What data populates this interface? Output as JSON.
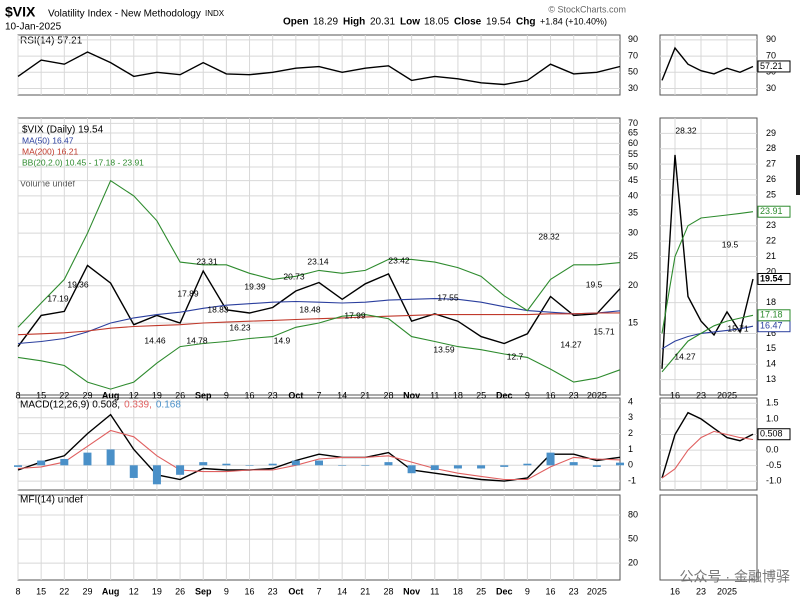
{
  "header": {
    "symbol": "$VIX",
    "name": "Volatility Index - New Methodology",
    "exchange": "INDX",
    "date": "10-Jan-2025",
    "open_label": "Open",
    "open": "18.29",
    "high_label": "High",
    "high": "20.31",
    "low_label": "Low",
    "low": "18.05",
    "close_label": "Close",
    "close": "19.54",
    "chg_label": "Chg",
    "chg": "+1.84 (+10.40%)",
    "source": "© StockCharts.com",
    "watermark": "公众号 · 金融博驿"
  },
  "chart_data": [
    {
      "type": "line",
      "title": "$VIX (Daily) 19.54",
      "log": true,
      "grid": true,
      "categories": [
        "8",
        "15",
        "22",
        "29",
        "Aug",
        "12",
        "19",
        "26",
        "Sep",
        "9",
        "16",
        "23",
        "Oct",
        "7",
        "14",
        "21",
        "28",
        "Nov",
        "11",
        "18",
        "25",
        "Dec",
        "9",
        "16",
        "23",
        "2025",
        null
      ],
      "series": [
        {
          "name": "$VIX (Daily) 19.54",
          "color": "#000000",
          "values": [
            12.5,
            15.9,
            16.4,
            23.4,
            20.4,
            14.8,
            15.9,
            15.0,
            22.4,
            16.6,
            16.2,
            16.9,
            19.2,
            20.5,
            18.0,
            20.3,
            21.9,
            15.2,
            16.1,
            15.2,
            13.5,
            12.8,
            13.8,
            18.4,
            15.9,
            16.1,
            19.54
          ]
        },
        {
          "name": "MA(50) 16.47",
          "color": "#2b3f9e",
          "values": [
            12.8,
            13.0,
            13.3,
            14.0,
            15.0,
            15.6,
            16.0,
            16.3,
            16.8,
            17.2,
            17.4,
            17.6,
            17.7,
            17.6,
            17.5,
            17.6,
            17.9,
            18.0,
            18.1,
            18.0,
            17.6,
            17.0,
            16.5,
            16.3,
            16.1,
            16.2,
            16.47
          ]
        },
        {
          "name": "MA(200) 16.21",
          "color": "#c0392b",
          "values": [
            13.7,
            13.8,
            13.9,
            14.1,
            14.4,
            14.6,
            14.7,
            14.8,
            15.0,
            15.1,
            15.2,
            15.3,
            15.4,
            15.5,
            15.6,
            15.7,
            15.8,
            15.9,
            16.0,
            16.0,
            16.0,
            16.0,
            16.0,
            16.1,
            16.1,
            16.2,
            16.21
          ]
        },
        {
          "name": "BB(20,2.0) 10.45 - 17.18 - 23.91",
          "color": "#2e8b2e",
          "values": [
            14.5,
            17.5,
            21,
            30,
            45,
            40,
            33,
            24,
            23.5,
            23.5,
            22,
            21,
            21.5,
            22.5,
            22,
            22.5,
            24.5,
            24.5,
            24,
            23,
            21.5,
            18.5,
            16.5,
            21,
            23.5,
            23.5,
            23.91
          ]
        },
        {
          "color": "#2e8b2e",
          "values": [
            11.5,
            11.2,
            10.8,
            9.5,
            9.0,
            9.5,
            11,
            12.5,
            12.8,
            13,
            13.3,
            13.5,
            14.5,
            15,
            15.8,
            16,
            15.5,
            13.5,
            13,
            12.5,
            12.2,
            11.8,
            11.5,
            10.5,
            9.5,
            9.8,
            10.45
          ]
        }
      ],
      "volume_label": "Volume undef",
      "annotations": [
        19.36,
        17.19,
        14.46,
        14.78,
        23.31,
        17.89,
        18.83,
        16.23,
        19.39,
        14.9,
        20.73,
        18.48,
        23.14,
        17.99,
        23.42,
        17.55,
        13.59,
        12.7,
        28.32,
        14.27,
        19.5,
        15.71
      ],
      "ylim": [
        8.6,
        73
      ],
      "yticks": [
        15,
        20,
        25,
        30,
        35,
        40,
        45,
        50,
        55,
        60,
        65,
        70
      ]
    },
    {
      "type": "line",
      "title": "RSI(14) 57.21",
      "grid": true,
      "series": [
        {
          "color": "#000000",
          "values": [
            45,
            65,
            60,
            75,
            62,
            45,
            50,
            47,
            62,
            48,
            47,
            50,
            55,
            57,
            50,
            55,
            58,
            40,
            45,
            42,
            37,
            35,
            40,
            60,
            48,
            50,
            57.21
          ]
        }
      ],
      "ylim": [
        22,
        96
      ],
      "yticks": [
        30,
        50,
        70,
        90
      ]
    },
    {
      "type": "line",
      "grid": true,
      "series": [
        {
          "name": "MACD(12,26,9) 0.508,",
          "color": "#000000",
          "values": [
            -0.3,
            0.2,
            0.6,
            2.0,
            3.2,
            1.0,
            -0.6,
            -0.9,
            -0.2,
            -0.3,
            -0.3,
            -0.2,
            0.3,
            0.7,
            0.5,
            0.5,
            0.8,
            -0.3,
            -0.5,
            -0.7,
            -0.9,
            -1.0,
            -0.8,
            0.7,
            0.7,
            0.3,
            0.508
          ]
        },
        {
          "name": "0.339,",
          "color": "#e06060",
          "values": [
            -0.2,
            -0.1,
            0.2,
            1.2,
            2.2,
            1.8,
            0.6,
            -0.3,
            -0.4,
            -0.4,
            -0.3,
            -0.3,
            0.0,
            0.4,
            0.5,
            0.5,
            0.6,
            0.2,
            -0.2,
            -0.5,
            -0.7,
            -0.9,
            -0.9,
            -0.1,
            0.5,
            0.4,
            0.339
          ]
        },
        {
          "name": "0.168",
          "color": "#4a90c8",
          "type": "bar",
          "values": [
            -0.1,
            0.3,
            0.4,
            0.8,
            1.0,
            -0.8,
            -1.2,
            -0.6,
            0.2,
            0.1,
            0,
            0.1,
            0.3,
            0.3,
            0,
            0,
            0.2,
            -0.5,
            -0.3,
            -0.2,
            -0.2,
            -0.1,
            0.1,
            0.8,
            0.2,
            -0.1,
            0.168
          ]
        }
      ],
      "ylim": [
        -1.56,
        4.25
      ],
      "yticks": [
        -1,
        0,
        1,
        2,
        3,
        4
      ]
    },
    {
      "type": "line",
      "title": "MFI(14) undef",
      "grid": true,
      "series": [],
      "ylim": [
        -1,
        105
      ],
      "yticks": [
        20,
        50,
        80
      ]
    },
    {
      "type": "line",
      "grid": true,
      "categories": [
        null,
        "16",
        null,
        "23",
        null,
        "2025",
        null,
        null
      ],
      "series": [
        {
          "color": "#000000",
          "values": [
            13.7,
            27.6,
            18.4,
            16.8,
            15.9,
            17.4,
            16.1,
            19.54
          ]
        },
        {
          "color": "#2b3f9e",
          "values": [
            15.0,
            15.5,
            15.8,
            16.0,
            16.1,
            16.2,
            16.3,
            16.47
          ]
        },
        {
          "color": "#2e8b2e",
          "values": [
            16,
            21,
            23,
            23.5,
            23.6,
            23.7,
            23.8,
            23.91
          ]
        },
        {
          "color": "#2e8b2e",
          "values": [
            13.5,
            14.5,
            15.5,
            16.0,
            16.5,
            16.8,
            17.0,
            17.18
          ]
        }
      ],
      "annotations": [
        28.32,
        19.5,
        15.71,
        14.27
      ],
      "ylim": [
        12,
        30
      ],
      "yticks": [
        13,
        14,
        15,
        16,
        18,
        20,
        21,
        22,
        23,
        25,
        26,
        27,
        28,
        29
      ]
    },
    {
      "type": "line",
      "grid": true,
      "series": [
        {
          "color": "#000000",
          "values": [
            40,
            80,
            60,
            52,
            48,
            55,
            50,
            57.21
          ]
        }
      ],
      "ylim": [
        22,
        96
      ],
      "yticks": [
        30,
        50,
        70,
        90
      ]
    },
    {
      "type": "line",
      "grid": true,
      "series": [
        {
          "color": "#000000",
          "values": [
            -0.9,
            0.5,
            1.2,
            1.0,
            0.7,
            0.4,
            0.3,
            0.508
          ]
        },
        {
          "color": "#e06060",
          "values": [
            -0.9,
            -0.6,
            0.0,
            0.4,
            0.6,
            0.5,
            0.4,
            0.339
          ]
        }
      ],
      "ylim": [
        -1.28,
        1.67
      ],
      "yticks": [
        {
          "value": -1,
          "label": "-1.0"
        },
        -0.5,
        {
          "value": 0,
          "label": "0.0"
        },
        0.5,
        {
          "value": 1,
          "label": "1.0"
        },
        1.5
      ]
    }
  ]
}
